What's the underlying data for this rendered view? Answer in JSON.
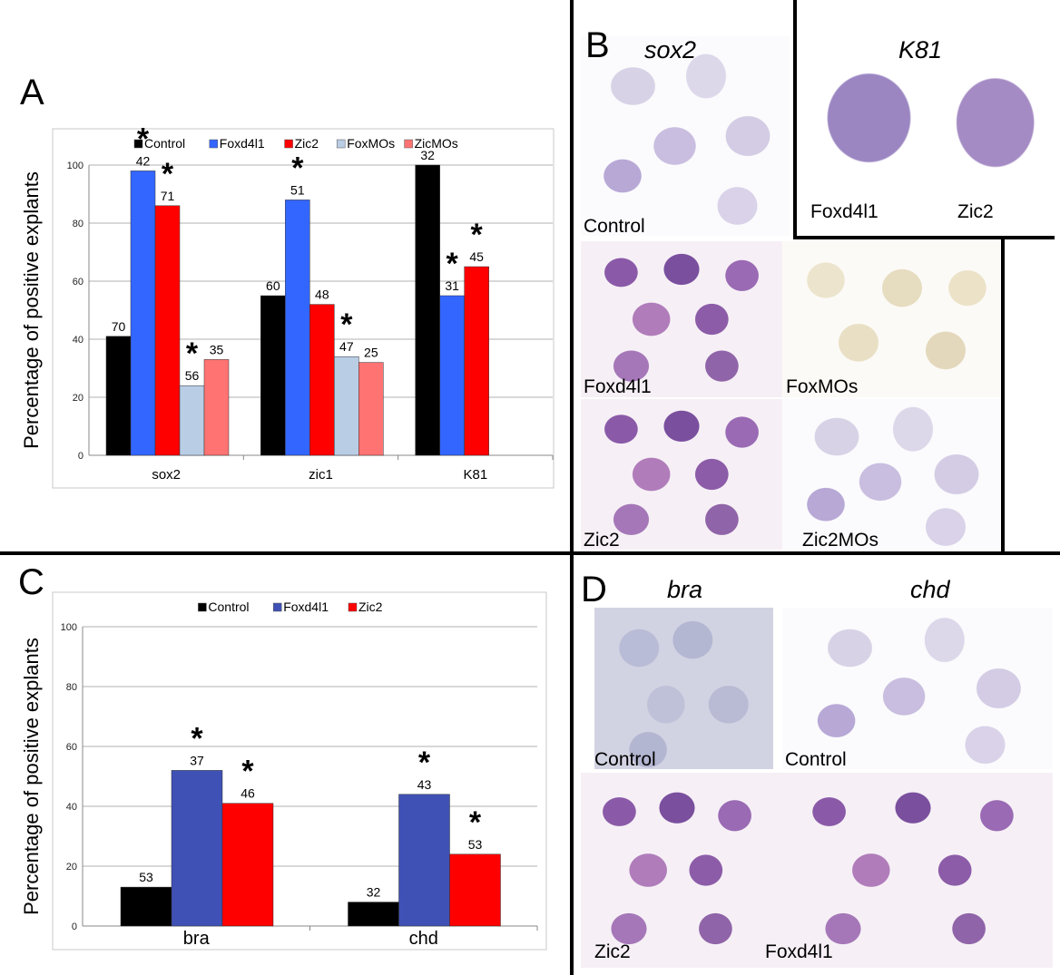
{
  "panels": {
    "A": "A",
    "B": "B",
    "C": "C",
    "D": "D"
  },
  "chart_data": [
    {
      "type": "bar",
      "panel": "A",
      "title": "",
      "xlabel": "",
      "ylabel": "Percentage of positive explants",
      "ylim": [
        0,
        100
      ],
      "yticks": [
        0,
        20,
        40,
        60,
        80,
        100
      ],
      "grid": true,
      "legend_position": "top",
      "categories": [
        "sox2",
        "zic1",
        "K81"
      ],
      "series": [
        {
          "name": "Control",
          "color": "#000000",
          "values": [
            41,
            55,
            100
          ],
          "labels": [
            "70",
            "60",
            "32"
          ],
          "significant": [
            false,
            false,
            false
          ]
        },
        {
          "name": "Foxd4l1",
          "color": "#3366ff",
          "values": [
            98,
            88,
            55
          ],
          "labels": [
            "42",
            "51",
            "31"
          ],
          "significant": [
            true,
            true,
            true
          ]
        },
        {
          "name": "Zic2",
          "color": "#ff0000",
          "values": [
            86,
            52,
            65
          ],
          "labels": [
            "71",
            "48",
            "45"
          ],
          "significant": [
            true,
            false,
            true
          ]
        },
        {
          "name": "FoxMOs",
          "color": "#b9cde5",
          "values": [
            24,
            34,
            null
          ],
          "labels": [
            "56",
            "47",
            ""
          ],
          "significant": [
            true,
            true,
            false
          ]
        },
        {
          "name": "ZicMOs",
          "color": "#ff7373",
          "values": [
            33,
            32,
            null
          ],
          "labels": [
            "35",
            "25",
            ""
          ],
          "significant": [
            false,
            false,
            false
          ]
        }
      ],
      "significance_marker": "*"
    },
    {
      "type": "bar",
      "panel": "C",
      "title": "",
      "xlabel": "",
      "ylabel": "Percentage of positive explants",
      "ylim": [
        0,
        100
      ],
      "yticks": [
        0,
        20,
        40,
        60,
        80,
        100
      ],
      "grid": true,
      "legend_position": "top",
      "categories": [
        "bra",
        "chd"
      ],
      "series": [
        {
          "name": "Control",
          "color": "#000000",
          "values": [
            13,
            8
          ],
          "labels": [
            "53",
            "32"
          ],
          "significant": [
            false,
            false
          ]
        },
        {
          "name": "Foxd4l1",
          "color": "#3f51b5",
          "values": [
            52,
            44
          ],
          "labels": [
            "37",
            "43"
          ],
          "significant": [
            true,
            true
          ]
        },
        {
          "name": "Zic2",
          "color": "#ff0000",
          "values": [
            41,
            24
          ],
          "labels": [
            "46",
            "53"
          ],
          "significant": [
            true,
            true
          ]
        }
      ],
      "significance_marker": "*"
    }
  ],
  "panel_B": {
    "sox2_title": "sox2",
    "k81_title": "K81",
    "labels": {
      "control": "Control",
      "k81_foxd4l1": "Foxd4l1",
      "k81_zic2": "Zic2",
      "foxd4l1": "Foxd4l1",
      "foxmos": "FoxMOs",
      "zic2": "Zic2",
      "zic2mos": "Zic2MOs"
    }
  },
  "panel_D": {
    "bra_title": "bra",
    "chd_title": "chd",
    "labels": {
      "bra_control": "Control",
      "chd_control": "Control",
      "zic2": "Zic2",
      "foxd4l1": "Foxd4l1"
    }
  }
}
